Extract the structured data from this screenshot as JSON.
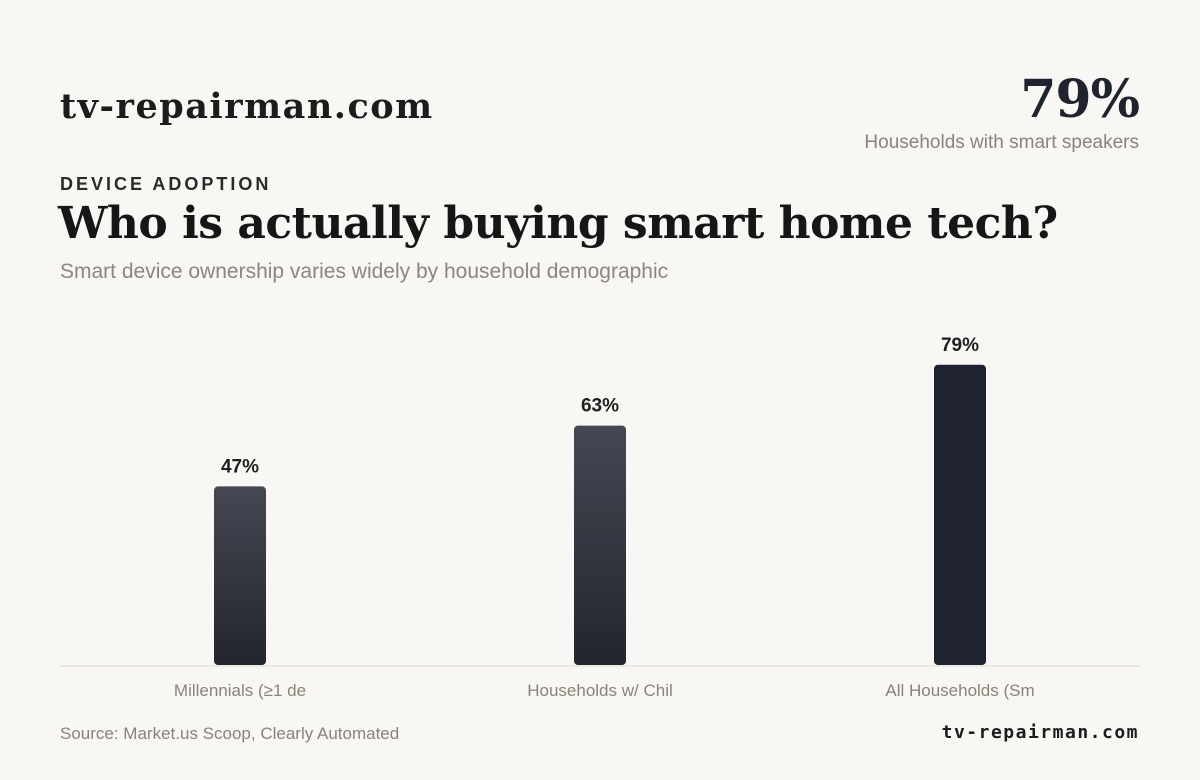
{
  "header": {
    "brand": "tv-repairman.com",
    "stat_value": "79%",
    "stat_label": "Households with smart speakers"
  },
  "eyebrow": "DEVICE ADOPTION",
  "title": "Who is actually buying smart home tech?",
  "subtitle": "Smart device ownership varies widely by household demographic",
  "footer": {
    "source": "Source: Market.us Scoop, Clearly Automated",
    "brand": "tv-repairman.com"
  },
  "colors": {
    "bar_top": "#454753",
    "bar_bottom": "#23252e",
    "bar_highlight": "#1f2330",
    "axis": "#dedad3",
    "tick_label": "#8a837a",
    "value_label": "#1f1f1f"
  },
  "chart_data": {
    "type": "bar",
    "categories": [
      "Millennials (≥1 de",
      "Households w/ Chil",
      "All Households (Sm"
    ],
    "values": [
      47,
      63,
      79
    ],
    "value_labels": [
      "47%",
      "63%",
      "79%"
    ],
    "highlight_index": 2,
    "ylim": [
      0,
      100
    ],
    "grid": false,
    "xlabel": "",
    "ylabel": ""
  }
}
